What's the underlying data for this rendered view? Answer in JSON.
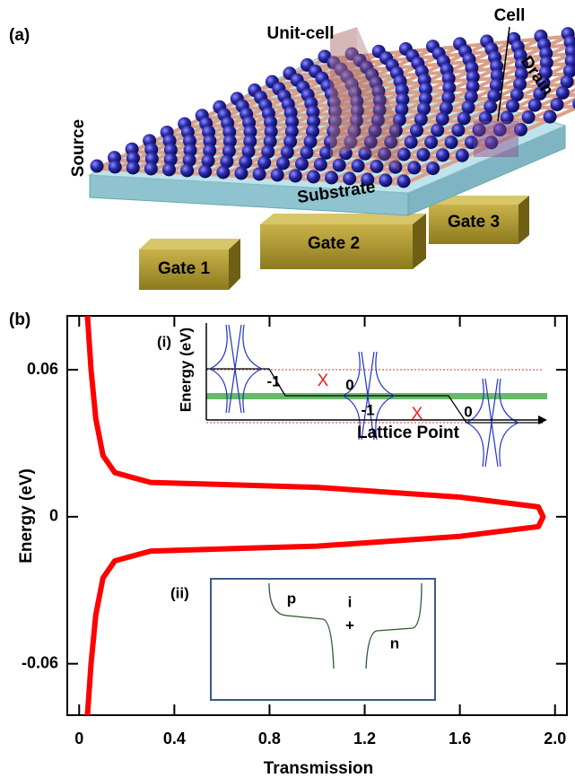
{
  "panel_a": {
    "label": "(a)",
    "unit_cell": "Unit-cell",
    "cell": "Cell",
    "drain": "Drain",
    "source": "Source",
    "substrate": "Substrate",
    "gate_1": "Gate 1",
    "gate_2": "Gate 2",
    "gate_3": "Gate 3"
  },
  "chart_data": {
    "type": "line",
    "panel_label": "(b)",
    "x_label": "Transmission",
    "y_label": "Energy (eV)",
    "xlim": [
      -0.05,
      2.05
    ],
    "xticks": [
      0,
      0.4,
      0.8,
      1.2,
      1.6,
      {
        "value": 2,
        "label": "2.0"
      }
    ],
    "ylim": [
      -0.081,
      0.082
    ],
    "yticks": [
      0.06,
      0,
      -0.06
    ],
    "series": [
      {
        "color": "#ff0000",
        "x": [
          0.035,
          0.05,
          0.07,
          0.1,
          0.15,
          0.3,
          1.0,
          1.6,
          1.93,
          1.95,
          1.93,
          1.6,
          1.0,
          0.3,
          0.15,
          0.1,
          0.07,
          0.05,
          0.035
        ],
        "values": [
          0.082,
          0.06,
          0.04,
          0.025,
          0.018,
          0.014,
          0.012,
          0.008,
          0.004,
          0,
          -0.004,
          -0.008,
          -0.012,
          -0.014,
          -0.018,
          -0.025,
          -0.04,
          -0.06,
          -0.081
        ]
      }
    ]
  },
  "inset_i": {
    "label": "(i)",
    "y_label": "Energy (eV)",
    "x_label": "Lattice Point",
    "step_1": "-1",
    "cross_1": "X",
    "step_2": "0",
    "step_3": "-1",
    "cross_2": "X",
    "step_4": "0"
  },
  "inset_ii": {
    "label": "(ii)",
    "p": "p",
    "i": "i",
    "plus": "+",
    "n": "n"
  }
}
